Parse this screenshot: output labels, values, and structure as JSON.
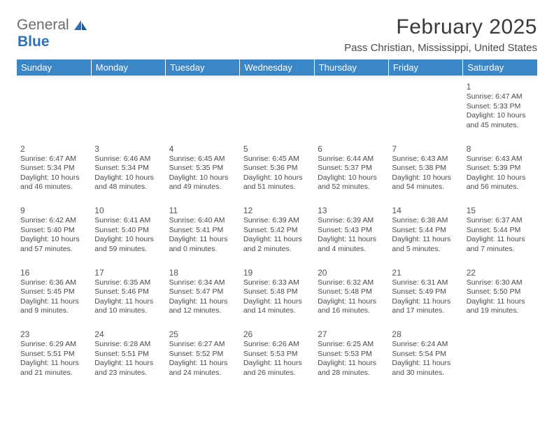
{
  "logo": {
    "part1": "General",
    "part2": "Blue"
  },
  "title": "February 2025",
  "location": "Pass Christian, Mississippi, United States",
  "colors": {
    "header_bg": "#3b86c6",
    "header_text": "#ffffff",
    "logo_gray": "#6a6a6a",
    "logo_blue": "#2f6fb4",
    "text": "#3a3a3a",
    "separator": "#90a4ae"
  },
  "weekdays": [
    "Sunday",
    "Monday",
    "Tuesday",
    "Wednesday",
    "Thursday",
    "Friday",
    "Saturday"
  ],
  "weeks": [
    [
      null,
      null,
      null,
      null,
      null,
      null,
      {
        "day": "1",
        "sunrise": "Sunrise: 6:47 AM",
        "sunset": "Sunset: 5:33 PM",
        "daylight": "Daylight: 10 hours and 45 minutes."
      }
    ],
    [
      {
        "day": "2",
        "sunrise": "Sunrise: 6:47 AM",
        "sunset": "Sunset: 5:34 PM",
        "daylight": "Daylight: 10 hours and 46 minutes."
      },
      {
        "day": "3",
        "sunrise": "Sunrise: 6:46 AM",
        "sunset": "Sunset: 5:34 PM",
        "daylight": "Daylight: 10 hours and 48 minutes."
      },
      {
        "day": "4",
        "sunrise": "Sunrise: 6:45 AM",
        "sunset": "Sunset: 5:35 PM",
        "daylight": "Daylight: 10 hours and 49 minutes."
      },
      {
        "day": "5",
        "sunrise": "Sunrise: 6:45 AM",
        "sunset": "Sunset: 5:36 PM",
        "daylight": "Daylight: 10 hours and 51 minutes."
      },
      {
        "day": "6",
        "sunrise": "Sunrise: 6:44 AM",
        "sunset": "Sunset: 5:37 PM",
        "daylight": "Daylight: 10 hours and 52 minutes."
      },
      {
        "day": "7",
        "sunrise": "Sunrise: 6:43 AM",
        "sunset": "Sunset: 5:38 PM",
        "daylight": "Daylight: 10 hours and 54 minutes."
      },
      {
        "day": "8",
        "sunrise": "Sunrise: 6:43 AM",
        "sunset": "Sunset: 5:39 PM",
        "daylight": "Daylight: 10 hours and 56 minutes."
      }
    ],
    [
      {
        "day": "9",
        "sunrise": "Sunrise: 6:42 AM",
        "sunset": "Sunset: 5:40 PM",
        "daylight": "Daylight: 10 hours and 57 minutes."
      },
      {
        "day": "10",
        "sunrise": "Sunrise: 6:41 AM",
        "sunset": "Sunset: 5:40 PM",
        "daylight": "Daylight: 10 hours and 59 minutes."
      },
      {
        "day": "11",
        "sunrise": "Sunrise: 6:40 AM",
        "sunset": "Sunset: 5:41 PM",
        "daylight": "Daylight: 11 hours and 0 minutes."
      },
      {
        "day": "12",
        "sunrise": "Sunrise: 6:39 AM",
        "sunset": "Sunset: 5:42 PM",
        "daylight": "Daylight: 11 hours and 2 minutes."
      },
      {
        "day": "13",
        "sunrise": "Sunrise: 6:39 AM",
        "sunset": "Sunset: 5:43 PM",
        "daylight": "Daylight: 11 hours and 4 minutes."
      },
      {
        "day": "14",
        "sunrise": "Sunrise: 6:38 AM",
        "sunset": "Sunset: 5:44 PM",
        "daylight": "Daylight: 11 hours and 5 minutes."
      },
      {
        "day": "15",
        "sunrise": "Sunrise: 6:37 AM",
        "sunset": "Sunset: 5:44 PM",
        "daylight": "Daylight: 11 hours and 7 minutes."
      }
    ],
    [
      {
        "day": "16",
        "sunrise": "Sunrise: 6:36 AM",
        "sunset": "Sunset: 5:45 PM",
        "daylight": "Daylight: 11 hours and 9 minutes."
      },
      {
        "day": "17",
        "sunrise": "Sunrise: 6:35 AM",
        "sunset": "Sunset: 5:46 PM",
        "daylight": "Daylight: 11 hours and 10 minutes."
      },
      {
        "day": "18",
        "sunrise": "Sunrise: 6:34 AM",
        "sunset": "Sunset: 5:47 PM",
        "daylight": "Daylight: 11 hours and 12 minutes."
      },
      {
        "day": "19",
        "sunrise": "Sunrise: 6:33 AM",
        "sunset": "Sunset: 5:48 PM",
        "daylight": "Daylight: 11 hours and 14 minutes."
      },
      {
        "day": "20",
        "sunrise": "Sunrise: 6:32 AM",
        "sunset": "Sunset: 5:48 PM",
        "daylight": "Daylight: 11 hours and 16 minutes."
      },
      {
        "day": "21",
        "sunrise": "Sunrise: 6:31 AM",
        "sunset": "Sunset: 5:49 PM",
        "daylight": "Daylight: 11 hours and 17 minutes."
      },
      {
        "day": "22",
        "sunrise": "Sunrise: 6:30 AM",
        "sunset": "Sunset: 5:50 PM",
        "daylight": "Daylight: 11 hours and 19 minutes."
      }
    ],
    [
      {
        "day": "23",
        "sunrise": "Sunrise: 6:29 AM",
        "sunset": "Sunset: 5:51 PM",
        "daylight": "Daylight: 11 hours and 21 minutes."
      },
      {
        "day": "24",
        "sunrise": "Sunrise: 6:28 AM",
        "sunset": "Sunset: 5:51 PM",
        "daylight": "Daylight: 11 hours and 23 minutes."
      },
      {
        "day": "25",
        "sunrise": "Sunrise: 6:27 AM",
        "sunset": "Sunset: 5:52 PM",
        "daylight": "Daylight: 11 hours and 24 minutes."
      },
      {
        "day": "26",
        "sunrise": "Sunrise: 6:26 AM",
        "sunset": "Sunset: 5:53 PM",
        "daylight": "Daylight: 11 hours and 26 minutes."
      },
      {
        "day": "27",
        "sunrise": "Sunrise: 6:25 AM",
        "sunset": "Sunset: 5:53 PM",
        "daylight": "Daylight: 11 hours and 28 minutes."
      },
      {
        "day": "28",
        "sunrise": "Sunrise: 6:24 AM",
        "sunset": "Sunset: 5:54 PM",
        "daylight": "Daylight: 11 hours and 30 minutes."
      },
      null
    ]
  ]
}
